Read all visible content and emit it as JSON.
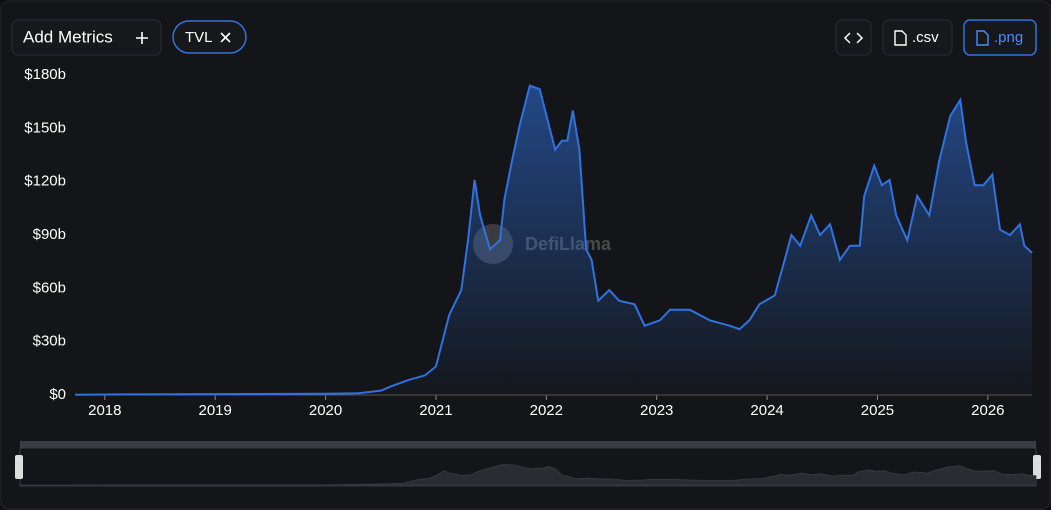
{
  "toolbar": {
    "add_metrics": "Add Metrics",
    "csv": ".csv",
    "png": ".png"
  },
  "watermark": "DefiLlama",
  "chart_data": {
    "type": "area",
    "x": [
      2017.73,
      2018.0,
      2019.0,
      2020.0,
      2020.3,
      2020.5,
      2020.6,
      2020.75,
      2020.9,
      2021.0,
      2021.12,
      2021.23,
      2021.29,
      2021.35,
      2021.4,
      2021.49,
      2021.58,
      2021.62,
      2021.69,
      2021.76,
      2021.85,
      2021.94,
      2022.01,
      2022.08,
      2022.14,
      2022.19,
      2022.24,
      2022.3,
      2022.36,
      2022.41,
      2022.47,
      2022.57,
      2022.66,
      2022.8,
      2022.89,
      2023.03,
      2023.12,
      2023.3,
      2023.48,
      2023.66,
      2023.75,
      2023.84,
      2023.93,
      2024.07,
      2024.16,
      2024.22,
      2024.3,
      2024.4,
      2024.48,
      2024.57,
      2024.66,
      2024.75,
      2024.84,
      2024.88,
      2024.97,
      2025.04,
      2025.11,
      2025.17,
      2025.27,
      2025.36,
      2025.47,
      2025.56,
      2025.66,
      2025.75,
      2025.8,
      2025.88,
      2025.96,
      2026.04,
      2026.11,
      2026.2,
      2026.29,
      2026.33,
      2026.4
    ],
    "series": [
      {
        "name": "TVL",
        "color": "#2f72e0",
        "values": [
          0.1,
          0.3,
          0.5,
          0.7,
          1.0,
          2.5,
          5,
          8.4,
          11,
          16,
          45,
          59,
          87,
          121,
          101,
          82,
          87,
          110,
          132,
          152,
          174,
          172,
          155,
          138,
          143,
          143,
          160,
          138,
          82,
          76,
          53,
          59,
          53,
          51,
          39,
          42,
          48,
          48,
          42,
          39,
          37,
          42,
          51,
          56,
          76,
          90,
          84,
          101,
          90,
          96,
          76,
          84,
          84,
          112,
          129,
          118,
          121,
          101,
          87,
          112,
          101,
          132,
          157,
          166,
          143,
          118,
          118,
          124,
          93,
          90,
          96,
          84,
          80
        ]
      }
    ],
    "xlim": [
      2017.73,
      2026.4
    ],
    "xticks": [
      2018,
      2019,
      2020,
      2021,
      2022,
      2023,
      2024,
      2025,
      2026
    ],
    "ylim": [
      0,
      180
    ],
    "yticks": [
      {
        "value": 0,
        "label": "$0"
      },
      {
        "value": 30,
        "label": "$30b"
      },
      {
        "value": 60,
        "label": "$60b"
      },
      {
        "value": 90,
        "label": "$90b"
      },
      {
        "value": 120,
        "label": "$120b"
      },
      {
        "value": 150,
        "label": "$150b"
      },
      {
        "value": 180,
        "label": "$180b"
      }
    ]
  }
}
